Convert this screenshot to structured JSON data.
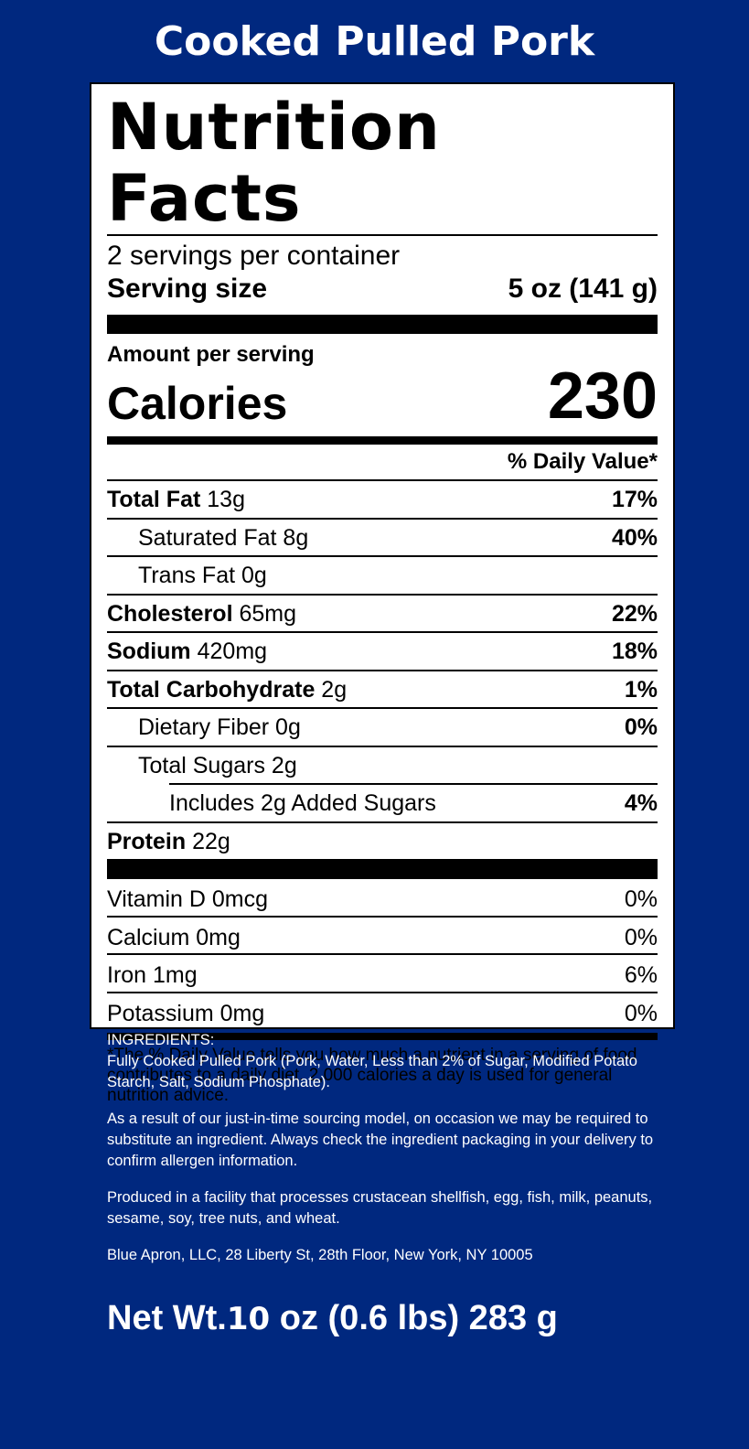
{
  "title": "Cooked Pulled Pork",
  "label": {
    "heading": "Nutrition Facts",
    "servings": "2 servings per container",
    "serving_size_label": "Serving size",
    "serving_size": "5 oz (141 g)",
    "amount_per_serving": "Amount per serving",
    "calories_label": "Calories",
    "calories": 230,
    "dv_header": "% Daily Value*",
    "nutrients": [
      {
        "name": "Total Fat",
        "amount": "13g",
        "dv": "17%"
      },
      {
        "name": "Saturated Fat 8g",
        "dv": "40%"
      },
      {
        "name": "Trans Fat 0g"
      },
      {
        "name": "Cholesterol",
        "amount": "65mg",
        "dv": "22%"
      },
      {
        "name": "Sodium",
        "amount": "420mg",
        "dv": "18%"
      },
      {
        "name": "Total Carbohydrate",
        "amount": "2g",
        "dv": "1%"
      },
      {
        "name": "Dietary Fiber 0g",
        "dv": "0%"
      },
      {
        "name": "Total Sugars 2g"
      },
      {
        "name": "Includes 2g Added Sugars",
        "dv": "4%"
      },
      {
        "name": "Protein",
        "amount": "22g"
      }
    ],
    "vitamins": [
      {
        "name": "Vitamin D 0mcg",
        "dv": "0%"
      },
      {
        "name": "Calcium 0mg",
        "dv": "0%"
      },
      {
        "name": "Iron 1mg",
        "dv": "6%"
      },
      {
        "name": "Potassium 0mg",
        "dv": "0%"
      }
    ],
    "footnote": "*The % Daily Value tells you how much a nutrient in a serving of food contributes to a daily diet. 2,000 calories a day is used for general nutrition advice."
  },
  "ingredients_header": "INGREDIENTS:",
  "ingredients": "Fully Cooked Pulled Pork (Pork, Water, Less than 2% of Sugar, Modified Potato Starch, Salt, Sodium Phosphate).",
  "sourcing_note": "As a result of our just-in-time sourcing model, on occasion we may be required to substitute an ingredient. Always check the ingredient packaging in your delivery to confirm allergen information.",
  "allergen_note": "Produced in a facility that processes crustacean shellfish, egg, fish, milk, peanuts, sesame, soy, tree nuts, and wheat.",
  "address": "Blue Apron, LLC, 28 Liberty St, 28th Floor, New York, NY 10005",
  "net_weight": {
    "prefix": "Net Wt.",
    "amount": "10",
    "rest": " oz (0.6 lbs) 283 g"
  }
}
